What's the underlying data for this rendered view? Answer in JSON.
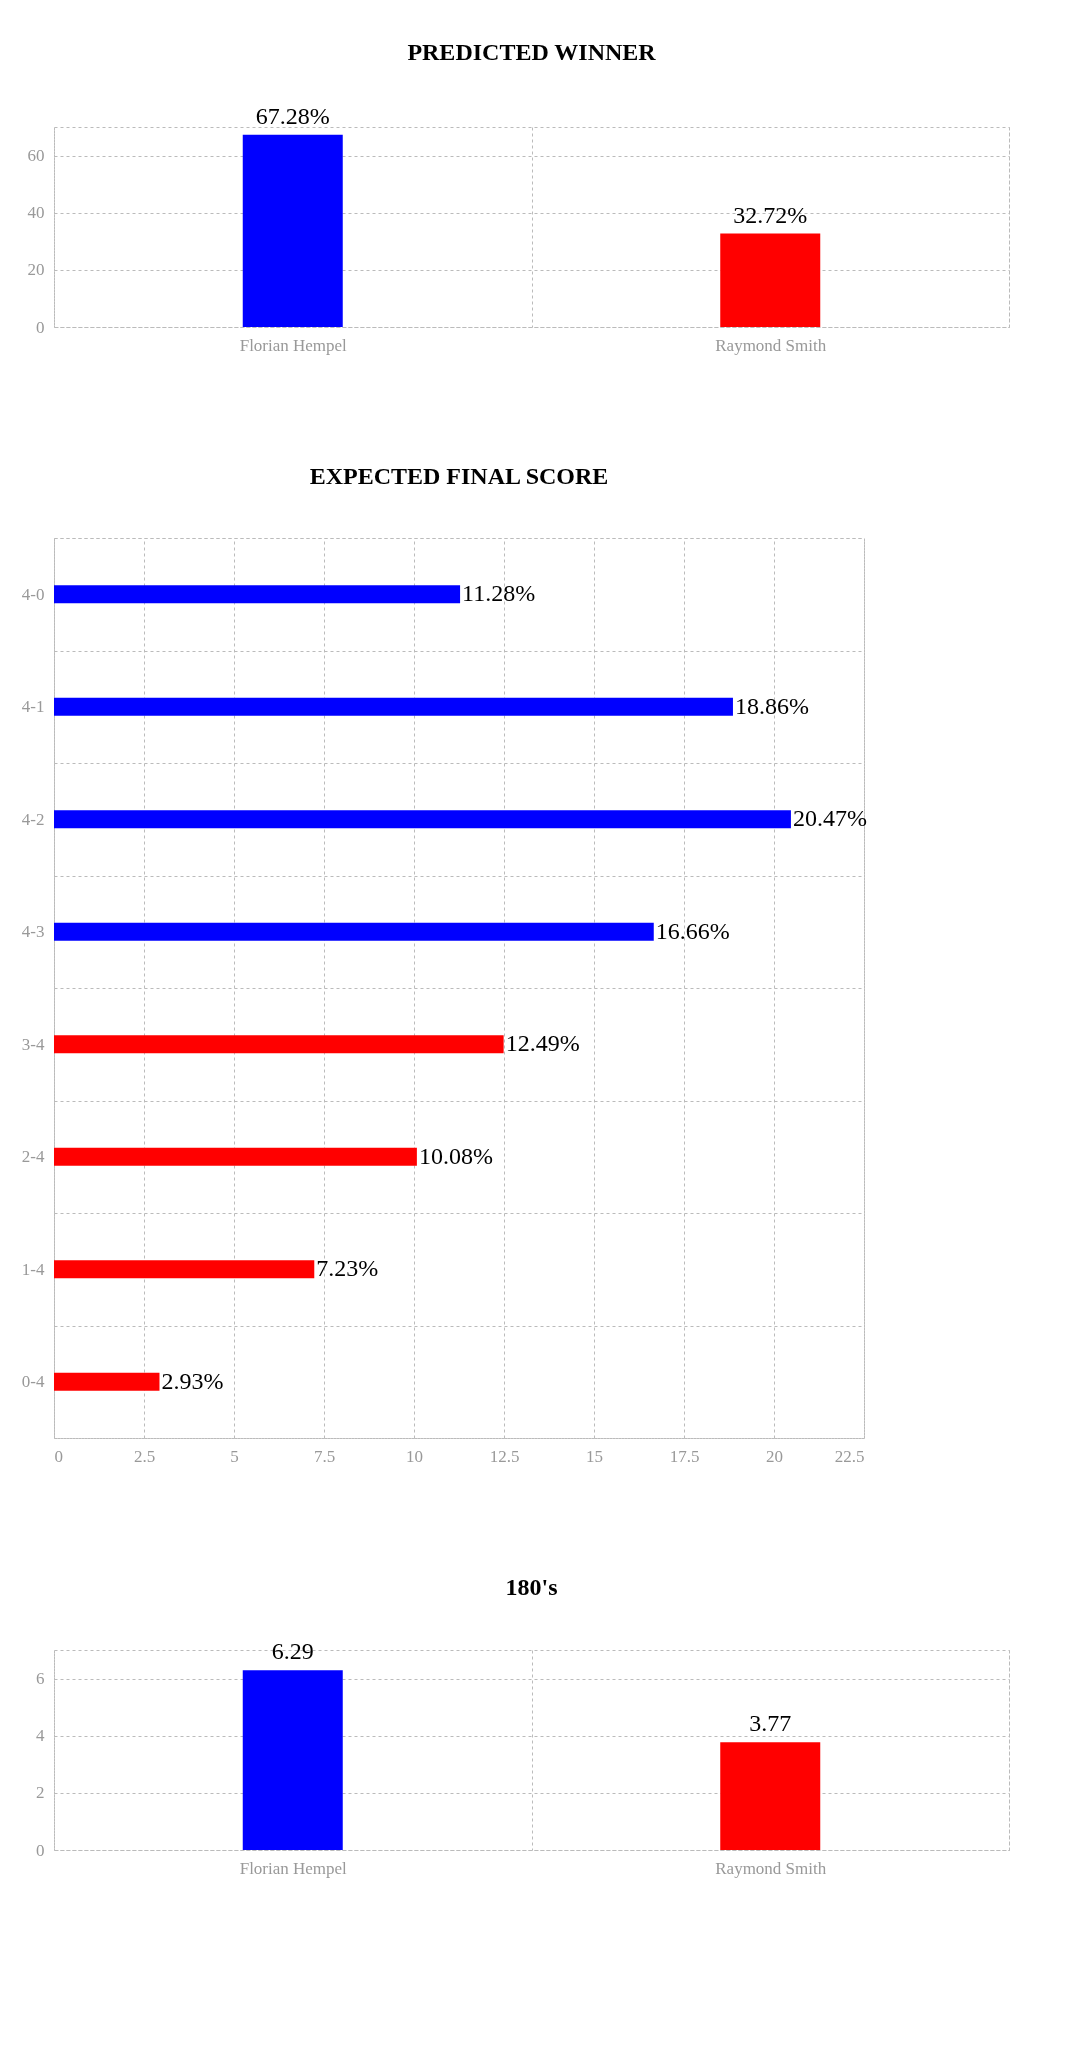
{
  "chart_data": [
    {
      "type": "bar",
      "title": "PREDICTED WINNER",
      "categories": [
        "Florian Hempel",
        "Raymond Smith"
      ],
      "values": [
        67.28,
        32.72
      ],
      "colors": [
        "#0000ff",
        "#ff0000"
      ],
      "ylim": [
        0,
        70
      ],
      "yticks": [
        0,
        20,
        40,
        60
      ],
      "grid": true,
      "value_labels": [
        "67.28%",
        "32.72%"
      ]
    },
    {
      "type": "bar",
      "orientation": "horizontal",
      "title": "EXPECTED FINAL SCORE",
      "categories": [
        "4-0",
        "4-1",
        "4-2",
        "4-3",
        "3-4",
        "2-4",
        "1-4",
        "0-4"
      ],
      "values": [
        11.28,
        18.86,
        20.47,
        16.66,
        12.49,
        10.08,
        7.23,
        2.93
      ],
      "colors": [
        "#0000ff",
        "#0000ff",
        "#0000ff",
        "#0000ff",
        "#ff0000",
        "#ff0000",
        "#ff0000",
        "#ff0000"
      ],
      "xlim": [
        0,
        22.5
      ],
      "xticks": [
        0,
        2.5,
        5,
        7.5,
        10,
        12.5,
        15,
        17.5,
        20,
        22.5
      ],
      "grid": true,
      "value_labels": [
        "11.28%",
        "18.86%",
        "20.47%",
        "16.66%",
        "12.49%",
        "10.08%",
        "7.23%",
        "2.93%"
      ]
    },
    {
      "type": "bar",
      "title": "180's",
      "categories": [
        "Florian Hempel",
        "Raymond Smith"
      ],
      "values": [
        6.29,
        3.77
      ],
      "colors": [
        "#0000ff",
        "#ff0000"
      ],
      "ylim": [
        0,
        7
      ],
      "yticks": [
        0,
        2,
        4,
        6
      ],
      "grid": true,
      "data_labels": true
    }
  ]
}
